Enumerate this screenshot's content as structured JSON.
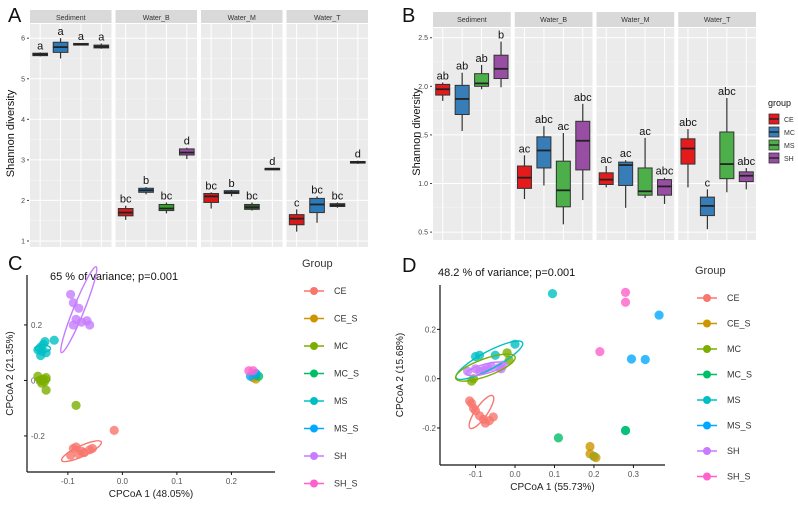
{
  "chart_data": [
    {
      "id": "A",
      "type": "box",
      "panel_label": "A",
      "ylabel": "Shannon diversity",
      "ylim": [
        0.95,
        6.35
      ],
      "yticks": [
        1,
        2,
        3,
        4,
        5,
        6
      ],
      "facets": [
        "Sediment",
        "Water_B",
        "Water_M",
        "Water_T"
      ],
      "groups": [
        "CE",
        "MC",
        "MS",
        "SH"
      ],
      "colors": {
        "CE": "#d7191c",
        "MC": "#2b7bba",
        "MS": "#33a02c",
        "SH": "#984ea3"
      },
      "boxes": [
        {
          "facet": "Sediment",
          "group": "CE",
          "min": 5.55,
          "q1": 5.57,
          "median": 5.6,
          "q3": 5.63,
          "max": 5.65,
          "label": "a",
          "fill": "#444444"
        },
        {
          "facet": "Sediment",
          "group": "MC",
          "min": 5.5,
          "q1": 5.65,
          "median": 5.78,
          "q3": 5.9,
          "max": 6.0,
          "label": "a",
          "fill": "#2b7bba"
        },
        {
          "facet": "Sediment",
          "group": "MS",
          "min": 5.82,
          "q1": 5.83,
          "median": 5.85,
          "q3": 5.87,
          "max": 5.88,
          "label": "a",
          "fill": "#444444"
        },
        {
          "facet": "Sediment",
          "group": "SH",
          "min": 5.74,
          "q1": 5.76,
          "median": 5.79,
          "q3": 5.83,
          "max": 5.87,
          "label": "a",
          "fill": "#444444"
        },
        {
          "facet": "Water_B",
          "group": "CE",
          "min": 1.52,
          "q1": 1.62,
          "median": 1.7,
          "q3": 1.8,
          "max": 1.87,
          "label": "bc",
          "fill": "#d7191c"
        },
        {
          "facet": "Water_B",
          "group": "MC",
          "min": 2.15,
          "q1": 2.2,
          "median": 2.25,
          "q3": 2.3,
          "max": 2.33,
          "label": "b",
          "fill": "#2b7bba"
        },
        {
          "facet": "Water_B",
          "group": "MS",
          "min": 1.68,
          "q1": 1.75,
          "median": 1.8,
          "q3": 1.9,
          "max": 1.95,
          "label": "bc",
          "fill": "#33a02c"
        },
        {
          "facet": "Water_B",
          "group": "SH",
          "min": 3.02,
          "q1": 3.12,
          "median": 3.18,
          "q3": 3.27,
          "max": 3.3,
          "label": "d",
          "fill": "#984ea3"
        },
        {
          "facet": "Water_M",
          "group": "CE",
          "min": 1.8,
          "q1": 1.95,
          "median": 2.1,
          "q3": 2.17,
          "max": 2.2,
          "label": "bc",
          "fill": "#d7191c"
        },
        {
          "facet": "Water_M",
          "group": "MC",
          "min": 2.1,
          "q1": 2.17,
          "median": 2.2,
          "q3": 2.24,
          "max": 2.26,
          "label": "b",
          "fill": "#2b7bba"
        },
        {
          "facet": "Water_M",
          "group": "MS",
          "min": 1.75,
          "q1": 1.78,
          "median": 1.83,
          "q3": 1.9,
          "max": 1.95,
          "label": "bc",
          "fill": "#2e5e2e"
        },
        {
          "facet": "Water_M",
          "group": "SH",
          "min": 2.76,
          "q1": 2.77,
          "median": 2.78,
          "q3": 2.79,
          "max": 2.8,
          "label": "d",
          "fill": "#444444"
        },
        {
          "facet": "Water_T",
          "group": "CE",
          "min": 1.23,
          "q1": 1.4,
          "median": 1.55,
          "q3": 1.65,
          "max": 1.78,
          "label": "c",
          "fill": "#d7191c"
        },
        {
          "facet": "Water_T",
          "group": "MC",
          "min": 1.45,
          "q1": 1.7,
          "median": 1.9,
          "q3": 2.05,
          "max": 2.1,
          "label": "bc",
          "fill": "#2b7bba"
        },
        {
          "facet": "Water_T",
          "group": "MS",
          "min": 1.82,
          "q1": 1.85,
          "median": 1.88,
          "q3": 1.92,
          "max": 1.95,
          "label": "bc",
          "fill": "#444444"
        },
        {
          "facet": "Water_T",
          "group": "SH",
          "min": 2.9,
          "q1": 2.92,
          "median": 2.94,
          "q3": 2.96,
          "max": 2.98,
          "label": "d",
          "fill": "#444444"
        }
      ]
    },
    {
      "id": "B",
      "type": "box",
      "panel_label": "B",
      "ylabel": "Shannon diversity",
      "ylim": [
        0.46,
        2.6
      ],
      "yticks": [
        0.5,
        1.0,
        1.5,
        2.0,
        2.5
      ],
      "ytick_labels": [
        "0.5",
        "1.0",
        "1.5",
        "2.0",
        "2.5"
      ],
      "facets": [
        "Sediment",
        "Water_B",
        "Water_M",
        "Water_T"
      ],
      "groups": [
        "CE",
        "MC",
        "MS",
        "SH"
      ],
      "colors": {
        "CE": "#e41a1c",
        "MC": "#377eb8",
        "MS": "#4daf4a",
        "SH": "#984ea3"
      },
      "legend": {
        "title": "group",
        "position": "right",
        "entries": [
          "CE",
          "MC",
          "MS",
          "SH"
        ]
      },
      "boxes": [
        {
          "facet": "Sediment",
          "group": "CE",
          "min": 1.85,
          "q1": 1.91,
          "median": 1.97,
          "q3": 2.02,
          "max": 2.04,
          "label": "ab"
        },
        {
          "facet": "Sediment",
          "group": "MC",
          "min": 1.54,
          "q1": 1.71,
          "median": 1.87,
          "q3": 2.01,
          "max": 2.14,
          "label": "ab"
        },
        {
          "facet": "Sediment",
          "group": "MS",
          "min": 1.97,
          "q1": 2.0,
          "median": 2.03,
          "q3": 2.13,
          "max": 2.22,
          "label": "ab"
        },
        {
          "facet": "Sediment",
          "group": "SH",
          "min": 1.99,
          "q1": 2.08,
          "median": 2.18,
          "q3": 2.32,
          "max": 2.46,
          "label": "b"
        },
        {
          "facet": "Water_B",
          "group": "CE",
          "min": 0.84,
          "q1": 0.95,
          "median": 1.06,
          "q3": 1.18,
          "max": 1.29,
          "label": "ac"
        },
        {
          "facet": "Water_B",
          "group": "MC",
          "min": 0.98,
          "q1": 1.16,
          "median": 1.34,
          "q3": 1.48,
          "max": 1.59,
          "label": "abc"
        },
        {
          "facet": "Water_B",
          "group": "MS",
          "min": 0.58,
          "q1": 0.76,
          "median": 0.93,
          "q3": 1.23,
          "max": 1.52,
          "label": "ac"
        },
        {
          "facet": "Water_B",
          "group": "SH",
          "min": 0.83,
          "q1": 1.14,
          "median": 1.44,
          "q3": 1.64,
          "max": 1.82,
          "label": "abc"
        },
        {
          "facet": "Water_M",
          "group": "CE",
          "min": 0.96,
          "q1": 0.99,
          "median": 1.04,
          "q3": 1.11,
          "max": 1.18,
          "label": "ac"
        },
        {
          "facet": "Water_M",
          "group": "MC",
          "min": 0.75,
          "q1": 0.98,
          "median": 1.19,
          "q3": 1.22,
          "max": 1.24,
          "label": "ac"
        },
        {
          "facet": "Water_M",
          "group": "MS",
          "min": 0.85,
          "q1": 0.88,
          "median": 0.92,
          "q3": 1.16,
          "max": 1.47,
          "label": "ac"
        },
        {
          "facet": "Water_M",
          "group": "SH",
          "min": 0.79,
          "q1": 0.88,
          "median": 0.97,
          "q3": 1.04,
          "max": 1.06,
          "label": "abc"
        },
        {
          "facet": "Water_T",
          "group": "CE",
          "min": 0.96,
          "q1": 1.2,
          "median": 1.36,
          "q3": 1.46,
          "max": 1.56,
          "label": "abc"
        },
        {
          "facet": "Water_T",
          "group": "MC",
          "min": 0.53,
          "q1": 0.67,
          "median": 0.77,
          "q3": 0.86,
          "max": 0.94,
          "label": "c"
        },
        {
          "facet": "Water_T",
          "group": "MS",
          "min": 0.91,
          "q1": 1.05,
          "median": 1.2,
          "q3": 1.53,
          "max": 1.88,
          "label": "abc"
        },
        {
          "facet": "Water_T",
          "group": "SH",
          "min": 0.94,
          "q1": 1.02,
          "median": 1.08,
          "q3": 1.12,
          "max": 1.16,
          "label": "abc"
        }
      ]
    },
    {
      "id": "C",
      "type": "scatter",
      "panel_label": "C",
      "annotation": "65 % of variance; p=0.001",
      "xlabel": "CPCoA 1 (48.05%)",
      "ylabel": "CPCoA 2 (21.35%)",
      "xlim": [
        -0.175,
        0.28
      ],
      "ylim": [
        -0.33,
        0.38
      ],
      "xticks": [
        -0.1,
        0.0,
        0.1,
        0.2
      ],
      "xtick_labels": [
        "-0.1",
        "0.0",
        "0.1",
        "0.2"
      ],
      "yticks": [
        -0.2,
        0.0,
        0.2
      ],
      "ytick_labels": [
        "-0.2",
        "0.0",
        "0.2"
      ],
      "legend": {
        "title": "Group",
        "position": "right",
        "entries": [
          "CE",
          "CE_S",
          "MC",
          "MC_S",
          "MS",
          "MS_S",
          "SH",
          "SH_S"
        ]
      },
      "colors": {
        "CE": "#f8766d",
        "CE_S": "#cd9600",
        "MC": "#7cae00",
        "MC_S": "#00be67",
        "MS": "#00bfc4",
        "MS_S": "#00a9ff",
        "SH": "#c77cff",
        "SH_S": "#ff61cc"
      },
      "points": {
        "CE": [
          [
            -0.09,
            -0.245
          ],
          [
            -0.08,
            -0.265
          ],
          [
            -0.075,
            -0.255
          ],
          [
            -0.07,
            -0.26
          ],
          [
            -0.06,
            -0.25
          ],
          [
            -0.095,
            -0.27
          ],
          [
            -0.055,
            -0.245
          ],
          [
            -0.085,
            -0.24
          ],
          [
            -0.015,
            -0.18
          ]
        ],
        "SH": [
          [
            -0.095,
            0.31
          ],
          [
            -0.09,
            0.28
          ],
          [
            -0.08,
            0.26
          ],
          [
            -0.06,
            0.2
          ],
          [
            -0.075,
            0.21
          ],
          [
            -0.09,
            0.2
          ],
          [
            -0.085,
            0.22
          ],
          [
            -0.065,
            0.215
          ]
        ],
        "MS": [
          [
            -0.155,
            0.11
          ],
          [
            -0.15,
            0.12
          ],
          [
            -0.145,
            0.13
          ],
          [
            -0.148,
            0.105
          ],
          [
            -0.14,
            0.1
          ],
          [
            -0.142,
            0.14
          ],
          [
            -0.125,
            0.145
          ],
          [
            -0.15,
            0.09
          ]
        ],
        "MC": [
          [
            -0.155,
            0.015
          ],
          [
            -0.15,
            0.0
          ],
          [
            -0.145,
            0.005
          ],
          [
            -0.148,
            -0.01
          ],
          [
            -0.14,
            0.01
          ],
          [
            -0.143,
            -0.005
          ],
          [
            -0.14,
            -0.035
          ],
          [
            -0.085,
            -0.09
          ]
        ],
        "CE_S": [
          [
            0.245,
            0.005
          ],
          [
            0.24,
            0.01
          ]
        ],
        "MC_S": [
          [
            0.25,
            0.015
          ],
          [
            0.245,
            0.02
          ]
        ],
        "MS_S": [
          [
            0.235,
            0.015
          ],
          [
            0.245,
            0.025
          ]
        ],
        "SH_S": [
          [
            0.232,
            0.035
          ],
          [
            0.24,
            0.035
          ]
        ]
      },
      "ellipses": [
        {
          "group": "SH",
          "cx": -0.08,
          "cy": 0.255,
          "rx": 0.085,
          "ry": 0.012,
          "angle_deg": -68
        },
        {
          "group": "CE",
          "cx": -0.075,
          "cy": -0.255,
          "rx": 0.04,
          "ry": 0.012,
          "angle_deg": -25
        },
        {
          "group": "MS",
          "cx": -0.146,
          "cy": 0.115,
          "rx": 0.014,
          "ry": 0.008,
          "angle_deg": 0
        },
        {
          "group": "MC",
          "cx": -0.146,
          "cy": 0.003,
          "rx": 0.013,
          "ry": 0.008,
          "angle_deg": 0
        }
      ]
    },
    {
      "id": "D",
      "type": "scatter",
      "panel_label": "D",
      "annotation": "48.2 % of variance; p=0.001",
      "xlabel": "CPCoA 1 (55.73%)",
      "ylabel": "CPCoA 2 (15.68%)",
      "xlim": [
        -0.19,
        0.38
      ],
      "ylim": [
        -0.35,
        0.38
      ],
      "xticks": [
        -0.1,
        0.0,
        0.1,
        0.2,
        0.3
      ],
      "xtick_labels": [
        "-0.1",
        "0.0",
        "0.1",
        "0.2",
        "0.3"
      ],
      "yticks": [
        -0.2,
        0.0,
        0.2
      ],
      "ytick_labels": [
        "-0.2",
        "0.0",
        "0.2"
      ],
      "legend": {
        "title": "Group",
        "position": "right",
        "entries": [
          "CE",
          "CE_S",
          "MC",
          "MC_S",
          "MS",
          "MS_S",
          "SH",
          "SH_S"
        ]
      },
      "colors": {
        "CE": "#f8766d",
        "CE_S": "#cd9600",
        "MC": "#7cae00",
        "MC_S": "#00be67",
        "MS": "#00bfc4",
        "MS_S": "#00a9ff",
        "SH": "#c77cff",
        "SH_S": "#ff61cc"
      },
      "points": {
        "CE": [
          [
            -0.115,
            -0.09
          ],
          [
            -0.11,
            -0.1
          ],
          [
            -0.105,
            -0.12
          ],
          [
            -0.1,
            -0.13
          ],
          [
            -0.09,
            -0.15
          ],
          [
            -0.08,
            -0.165
          ],
          [
            -0.075,
            -0.18
          ],
          [
            -0.065,
            -0.17
          ],
          [
            -0.055,
            -0.155
          ]
        ],
        "MC": [
          [
            -0.11,
            -0.01
          ],
          [
            -0.105,
            0.0
          ],
          [
            -0.02,
            0.105
          ],
          [
            -0.015,
            0.075
          ]
        ],
        "SH": [
          [
            -0.12,
            0.03
          ],
          [
            -0.1,
            0.04
          ],
          [
            -0.08,
            0.035
          ],
          [
            -0.06,
            0.05
          ],
          [
            -0.04,
            0.045
          ],
          [
            -0.03,
            0.055
          ],
          [
            -0.035,
            0.04
          ],
          [
            -0.09,
            0.03
          ],
          [
            -0.07,
            0.045
          ]
        ],
        "MS": [
          [
            -0.1,
            0.09
          ],
          [
            -0.09,
            0.095
          ],
          [
            -0.05,
            0.095
          ],
          [
            0.0,
            0.14
          ],
          [
            0.095,
            0.345
          ],
          [
            0.28,
            -0.21
          ]
        ],
        "MC_S": [
          [
            0.11,
            -0.24
          ],
          [
            0.2,
            -0.315
          ],
          [
            0.28,
            -0.21
          ]
        ],
        "CE_S": [
          [
            0.19,
            -0.275
          ],
          [
            0.19,
            -0.305
          ],
          [
            0.205,
            -0.32
          ]
        ],
        "MS_S": [
          [
            0.295,
            0.08
          ],
          [
            0.33,
            0.078
          ],
          [
            0.365,
            0.258
          ]
        ],
        "SH_S": [
          [
            0.215,
            0.11
          ],
          [
            0.28,
            0.35
          ],
          [
            0.28,
            0.31
          ]
        ]
      },
      "ellipses": [
        {
          "group": "MS",
          "cx": -0.065,
          "cy": 0.075,
          "rx": 0.095,
          "ry": 0.022,
          "angle_deg": -28
        },
        {
          "group": "MC",
          "cx": -0.075,
          "cy": 0.045,
          "rx": 0.08,
          "ry": 0.022,
          "angle_deg": -20
        },
        {
          "group": "SH",
          "cx": -0.075,
          "cy": 0.04,
          "rx": 0.05,
          "ry": 0.012,
          "angle_deg": -15
        },
        {
          "group": "CE",
          "cx": -0.085,
          "cy": -0.135,
          "rx": 0.05,
          "ry": 0.015,
          "angle_deg": -55
        }
      ]
    }
  ]
}
